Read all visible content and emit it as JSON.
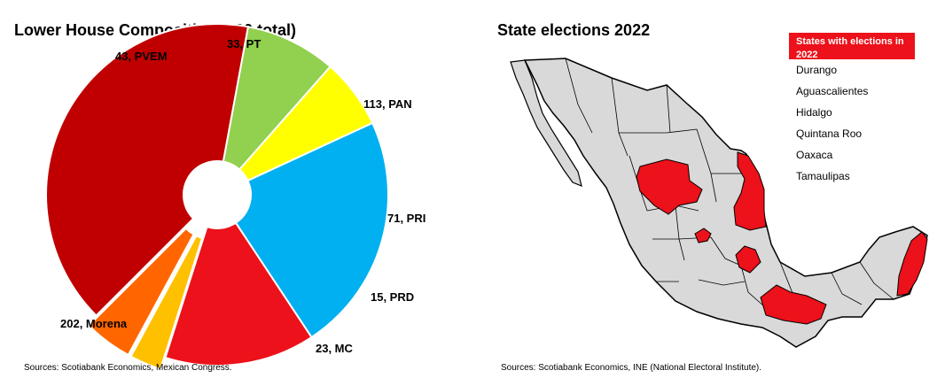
{
  "chart_data": {
    "type": "pie",
    "title": "Lower House Composition (500 total)",
    "total": 500,
    "slices": [
      {
        "name": "Morena",
        "value": 202,
        "label": "202, Morena",
        "color": "#c00000"
      },
      {
        "name": "PVEM",
        "value": 43,
        "label": "43, PVEM",
        "color": "#92d050"
      },
      {
        "name": "PT",
        "value": 33,
        "label": "33, PT",
        "color": "#ffff00"
      },
      {
        "name": "PAN",
        "value": 113,
        "label": "113, PAN",
        "color": "#00b0f0"
      },
      {
        "name": "PRI",
        "value": 71,
        "label": "71, PRI",
        "color": "#ec111a"
      },
      {
        "name": "PRD",
        "value": 15,
        "label": "15, PRD",
        "color": "#ffc000"
      },
      {
        "name": "MC",
        "value": 23,
        "label": "23, MC",
        "color": "#ff6600"
      }
    ],
    "source": "Sources: Scotiabank Economics, Mexican Congress."
  },
  "map": {
    "title": "State elections 2022",
    "legend_header": "States with elections in 2022",
    "legend_color": "#ec111a",
    "land_color": "#d9d9d9",
    "states": [
      "Durango",
      "Aguascalientes",
      "Hidalgo",
      "Quintana Roo",
      "Oaxaca",
      "Tamaulipas"
    ],
    "source": "Sources: Scotiabank Economics, INE (National Electoral Institute)."
  }
}
